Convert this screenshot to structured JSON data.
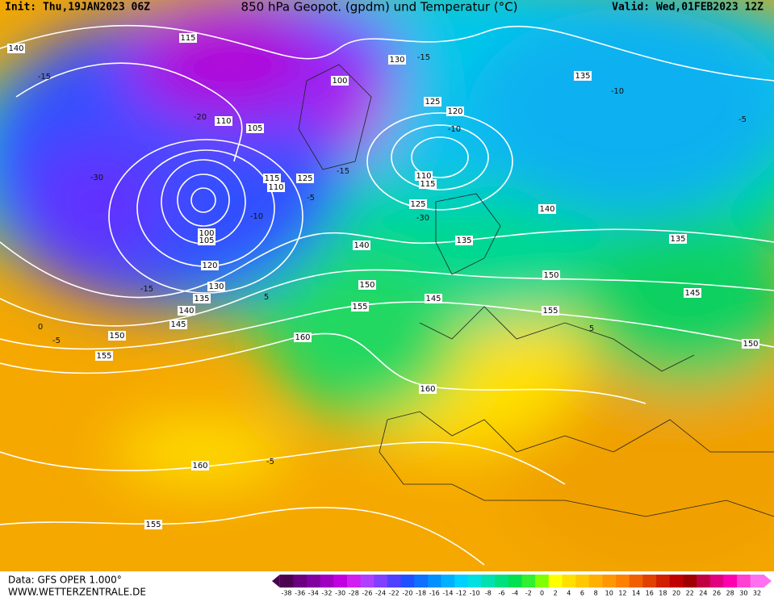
{
  "header": {
    "init": "Init: Thu,19JAN2023 06Z",
    "title": "850 hPa Geopot. (gpdm) und Temperatur (°C)",
    "valid": "Valid: Wed,01FEB2023 12Z"
  },
  "footer": {
    "data": "Data: GFS OPER 1.000°",
    "site": "WWW.WETTERZENTRALE.DE"
  },
  "geopotential_labels": [
    140,
    115,
    130,
    135,
    100,
    125,
    120,
    110,
    105,
    115,
    110,
    125,
    110,
    115,
    125,
    140,
    135,
    135,
    100,
    105,
    140,
    120,
    150,
    130,
    150,
    135,
    145,
    145,
    140,
    155,
    155,
    145,
    150,
    160,
    150,
    155,
    160,
    160,
    155
  ],
  "temperature_labels": [
    -15,
    -15,
    -10,
    -5,
    -10,
    -15,
    -5,
    -10,
    -30,
    -20,
    -30,
    -15,
    5,
    0,
    -5,
    5,
    -5
  ],
  "colorbar": {
    "ticks": [
      -38,
      -36,
      -34,
      -32,
      -30,
      -28,
      -26,
      -24,
      -22,
      -20,
      -18,
      -16,
      -14,
      -12,
      -10,
      -8,
      -6,
      -4,
      -2,
      0,
      2,
      4,
      6,
      8,
      10,
      12,
      14,
      16,
      18,
      20,
      22,
      24,
      26,
      28,
      30,
      32
    ],
    "colors": [
      "#4b0050",
      "#6a0080",
      "#8000a0",
      "#a000c0",
      "#c000e0",
      "#d020f0",
      "#b040ff",
      "#8040ff",
      "#5040ff",
      "#2050ff",
      "#1070ff",
      "#0090ff",
      "#00b0ff",
      "#00d0ff",
      "#00e0e0",
      "#00e0b0",
      "#00e080",
      "#00e050",
      "#30f030",
      "#80ff00",
      "#ffff00",
      "#ffe000",
      "#ffc800",
      "#ffb000",
      "#ff9800",
      "#ff8000",
      "#f06000",
      "#e04000",
      "#d02000",
      "#c00000",
      "#a00000",
      "#c00040",
      "#e00080",
      "#ff00b0",
      "#ff40d0",
      "#ff70f0"
    ]
  }
}
